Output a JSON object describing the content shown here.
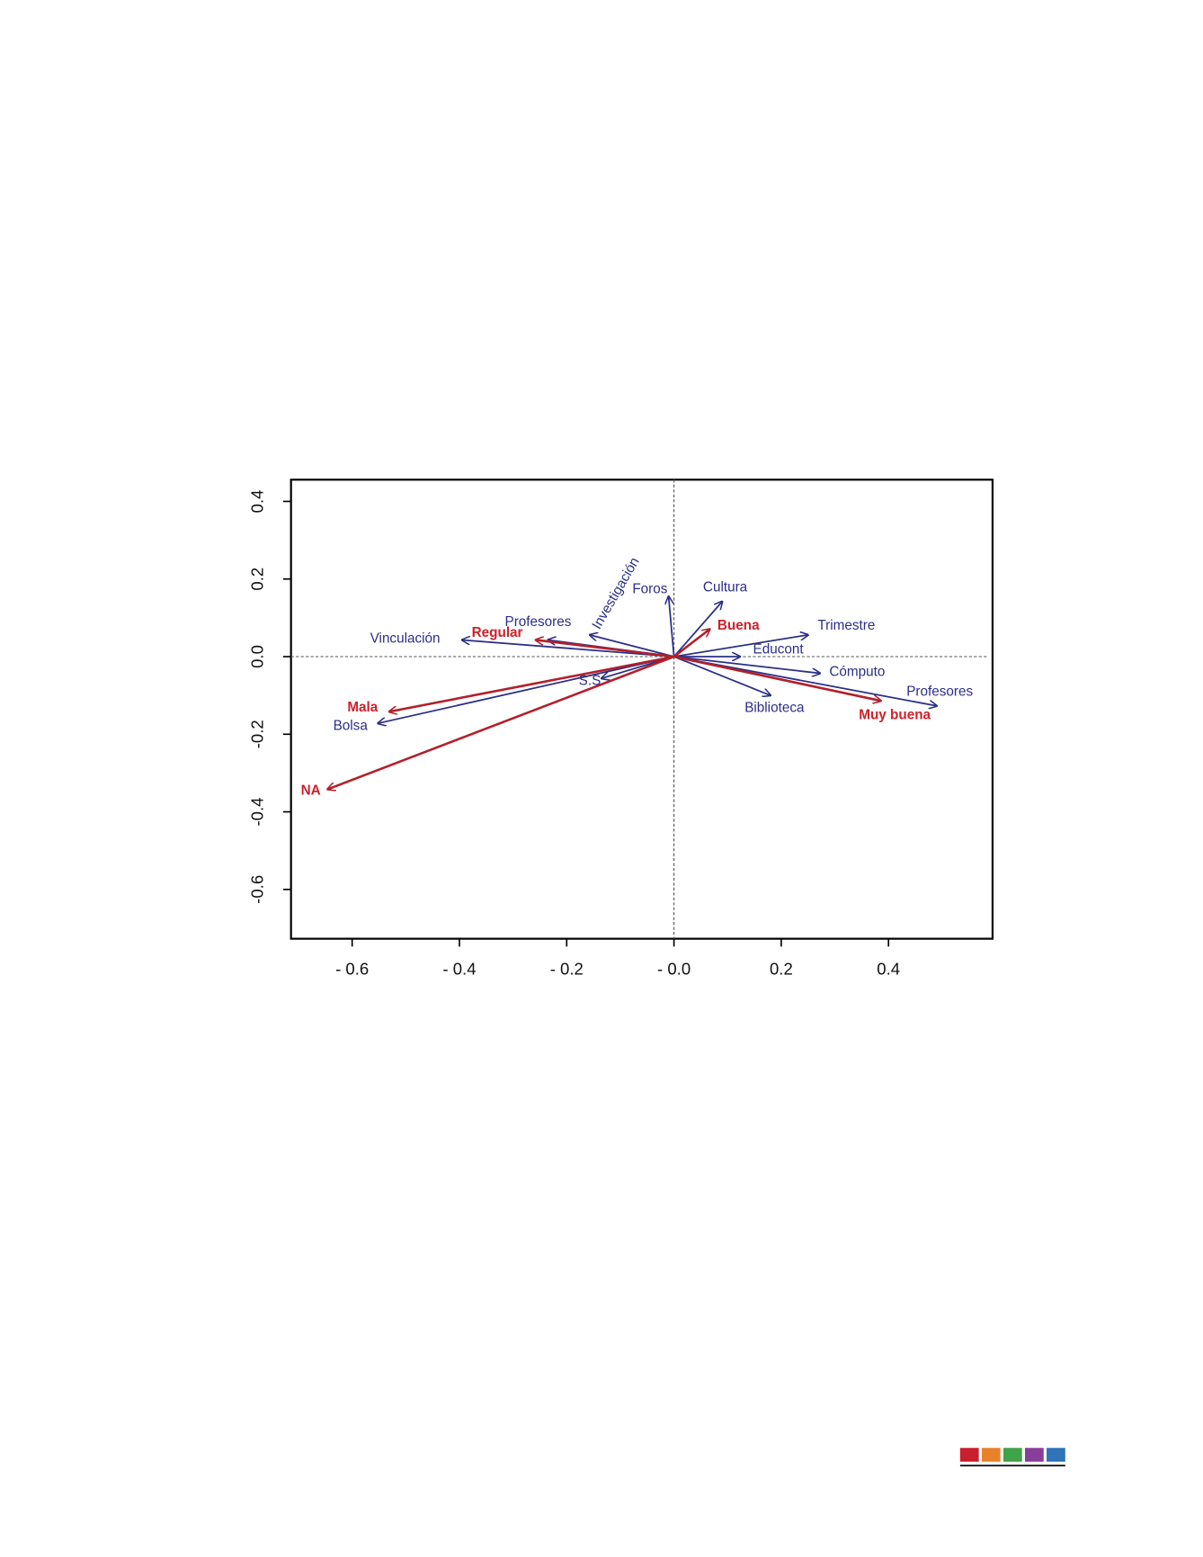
{
  "chart_data": {
    "type": "biplot",
    "xlim": [
      -0.714,
      0.594
    ],
    "ylim": [
      -0.727,
      0.456
    ],
    "xticks": [
      {
        "value": -0.6,
        "label": "- 0.6"
      },
      {
        "value": -0.4,
        "label": "- 0.4"
      },
      {
        "value": -0.2,
        "label": "- 0.2"
      },
      {
        "value": 0,
        "label": "- 0.0"
      },
      {
        "value": 0.2,
        "label": "0.2"
      },
      {
        "value": 0.4,
        "label": "0.4"
      }
    ],
    "yticks": [
      0.4,
      0.2,
      {
        "value": 0,
        "label": "0.0"
      },
      -0.2,
      -0.4,
      -0.6
    ],
    "series": [
      {
        "color": "#2b2f86",
        "labels": [
          "Vinculación",
          "Profesores",
          "Investigación",
          "Foros",
          "Cultura",
          "Trimestre",
          "Educont",
          "Cómputo",
          "Profesores",
          "Biblioteca",
          "S.S",
          "Bolsa"
        ],
        "x": [
          -0.395,
          -0.235,
          -0.157,
          -0.01,
          0.09,
          0.25,
          0.123,
          0.272,
          0.49,
          0.18,
          -0.135,
          -0.552
        ],
        "y": [
          0.043,
          0.043,
          0.056,
          0.155,
          0.142,
          0.056,
          0.0,
          -0.043,
          -0.127,
          -0.1,
          -0.056,
          -0.172
        ]
      },
      {
        "color": "#b3202a",
        "labels": [
          "Regular",
          "Buena",
          "Mala",
          "NA",
          "Muy buena"
        ],
        "x": [
          -0.258,
          0.067,
          -0.531,
          -0.646,
          0.386
        ],
        "y": [
          0.043,
          0.071,
          -0.142,
          -0.342,
          -0.114
        ]
      }
    ]
  }
}
